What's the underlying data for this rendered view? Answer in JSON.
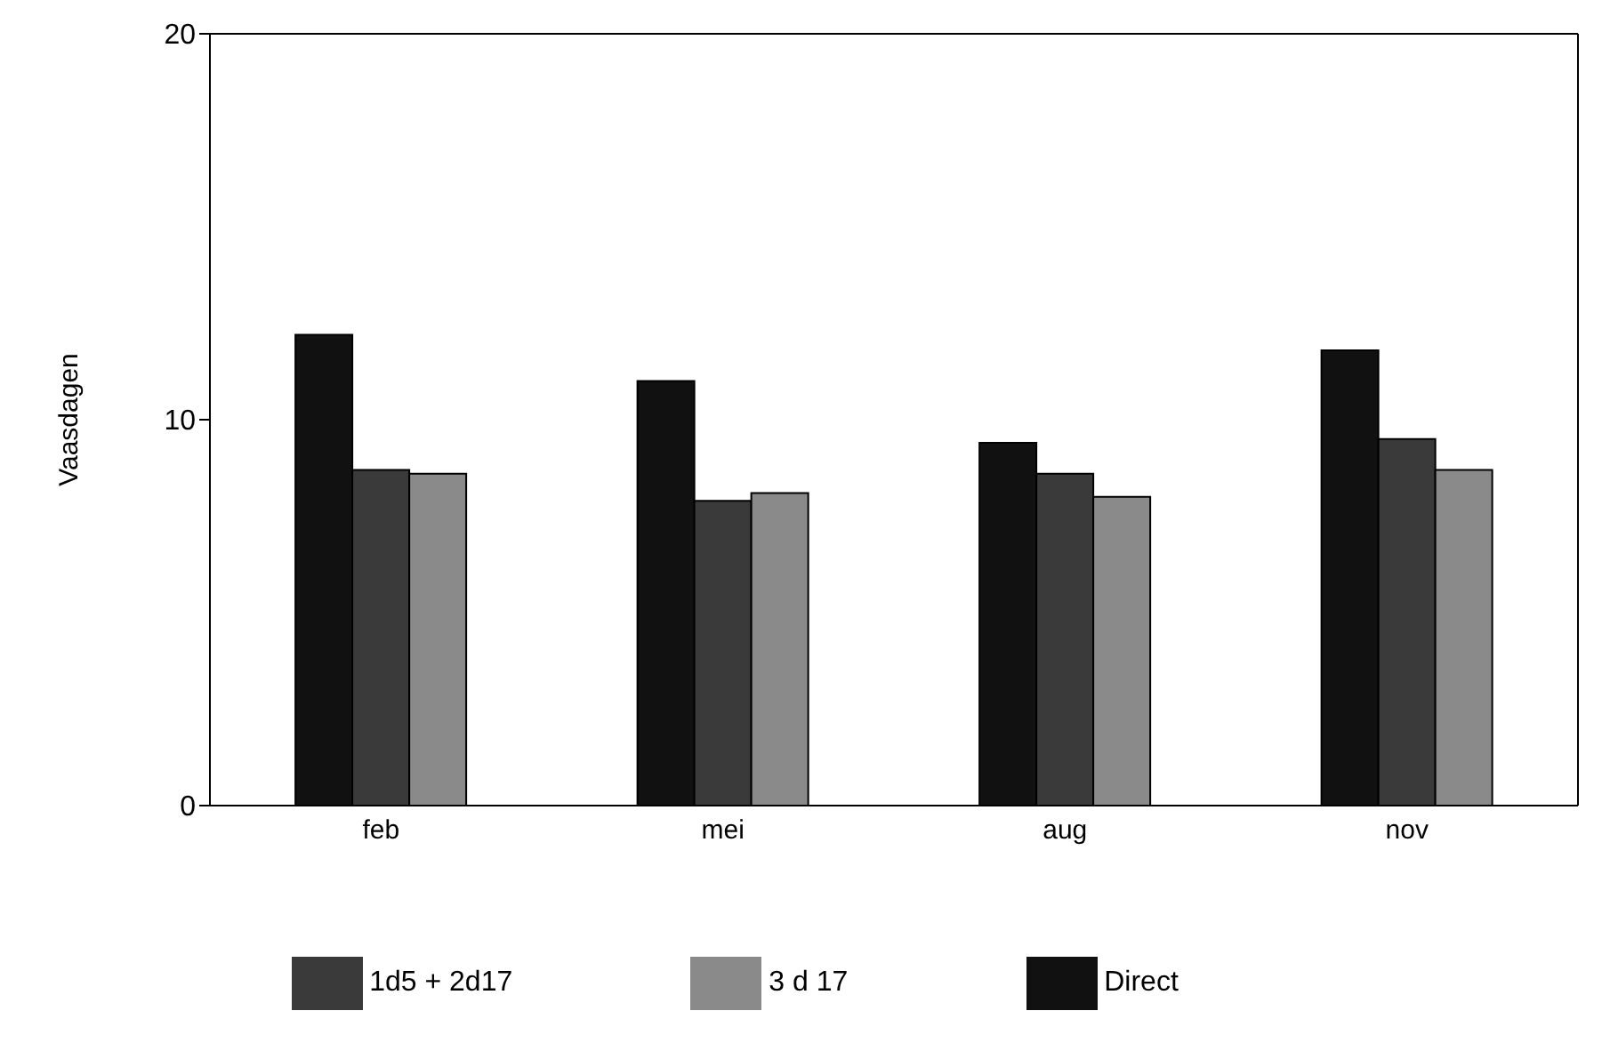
{
  "chart_data": {
    "type": "bar",
    "ylabel": "Vaasdagen",
    "categories": [
      "feb",
      "mei",
      "aug",
      "nov"
    ],
    "series": [
      {
        "name": "Direct",
        "color": "#111111",
        "values": [
          12.2,
          11.0,
          9.4,
          11.8
        ]
      },
      {
        "name": "1d5 + 2d17",
        "color": "#3a3a3a",
        "values": [
          8.7,
          7.9,
          8.6,
          9.5
        ]
      },
      {
        "name": "3 d 17",
        "color": "#8a8a8a",
        "values": [
          8.6,
          8.1,
          8.0,
          8.7
        ]
      }
    ],
    "ylim": [
      0,
      20
    ],
    "yticks": [
      0,
      10,
      20
    ],
    "grid": false,
    "legend": "bottom"
  }
}
